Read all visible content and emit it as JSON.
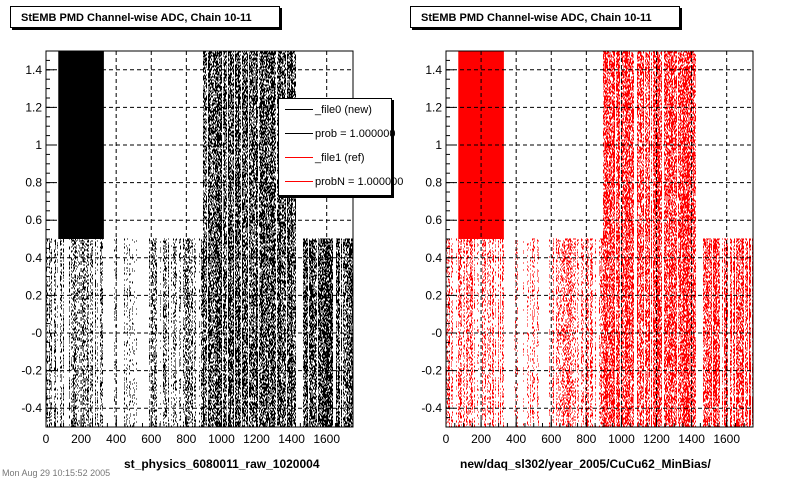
{
  "footer_text": "Mon Aug 29 10:15:52 2005",
  "chart_data": [
    {
      "type": "scatter",
      "title": "StEMB PMD Channel-wise ADC, Chain 10-11",
      "xlabel": "st_physics_6080011_raw_1020004",
      "ylabel": "",
      "xlim": [
        0,
        1750
      ],
      "ylim": [
        -0.5,
        1.5
      ],
      "xticks": [
        "0",
        "200",
        "400",
        "600",
        "800",
        "1000",
        "1200",
        "1400",
        "1600"
      ],
      "yticks": [
        "-0.4",
        "-0.2",
        "-0",
        "0.2",
        "0.4",
        "0.6",
        "0.8",
        "1",
        "1.2",
        "1.4"
      ],
      "grid": true,
      "marker_color": "#000000",
      "series": [
        {
          "name": "_file0 (new)",
          "description_regions": [
            {
              "x": [
                0,
                330
              ],
              "y": [
                -0.5,
                0.5
              ],
              "density": "medium"
            },
            {
              "x": [
                70,
                330
              ],
              "y": [
                0.5,
                1.5
              ],
              "density": "solid"
            },
            {
              "x": [
                390,
                530
              ],
              "y": [
                -0.5,
                0.5
              ],
              "density": "low"
            },
            {
              "x": [
                590,
                900
              ],
              "y": [
                -0.5,
                0.5
              ],
              "density": "medium"
            },
            {
              "x": [
                900,
                1420
              ],
              "y": [
                -0.5,
                1.5
              ],
              "density": "high"
            },
            {
              "x": [
                1470,
                1750
              ],
              "y": [
                -0.5,
                0.5
              ],
              "density": "high"
            }
          ]
        }
      ],
      "legend": {
        "placement": "top-right",
        "entries": [
          {
            "label": "_file0 (new)",
            "color": "#000000"
          },
          {
            "label": "prob = 1.000000",
            "color": "#000000"
          },
          {
            "label": "_file1 (ref)",
            "color": "#ff0000"
          },
          {
            "label": "probN = 1.000000",
            "color": "#ff0000"
          }
        ]
      }
    },
    {
      "type": "scatter",
      "title": "StEMB PMD Channel-wise ADC, Chain 10-11",
      "xlabel": "new/daq_sl302/year_2005/CuCu62_MinBias/",
      "ylabel": "",
      "xlim": [
        0,
        1750
      ],
      "ylim": [
        -0.5,
        1.5
      ],
      "xticks": [
        "0",
        "200",
        "400",
        "600",
        "800",
        "1000",
        "1200",
        "1400",
        "1600"
      ],
      "yticks": [
        "-0.4",
        "-0.2",
        "-0",
        "0.2",
        "0.4",
        "0.6",
        "0.8",
        "1",
        "1.2",
        "1.4"
      ],
      "grid": true,
      "marker_color": "#ff0000",
      "series": [
        {
          "name": "_file1 (ref)",
          "description_regions": [
            {
              "x": [
                0,
                330
              ],
              "y": [
                -0.5,
                0.5
              ],
              "density": "medium"
            },
            {
              "x": [
                70,
                330
              ],
              "y": [
                0.5,
                1.5
              ],
              "density": "solid"
            },
            {
              "x": [
                390,
                530
              ],
              "y": [
                -0.5,
                0.5
              ],
              "density": "low"
            },
            {
              "x": [
                590,
                900
              ],
              "y": [
                -0.5,
                0.5
              ],
              "density": "medium"
            },
            {
              "x": [
                900,
                1420
              ],
              "y": [
                -0.5,
                1.5
              ],
              "density": "high"
            },
            {
              "x": [
                1470,
                1750
              ],
              "y": [
                -0.5,
                0.5
              ],
              "density": "high"
            }
          ]
        }
      ]
    }
  ]
}
